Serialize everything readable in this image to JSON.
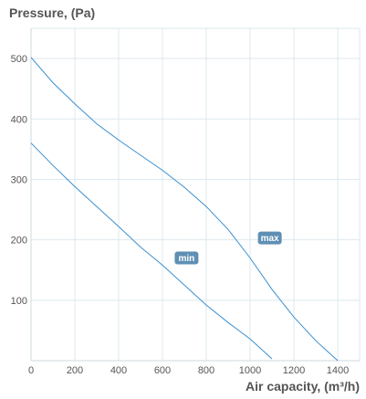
{
  "chart_data": {
    "type": "line",
    "ylabel": "Pressure, (Pa)",
    "xlabel": "Air capacity, (m³/h)",
    "xlim": [
      0,
      1500
    ],
    "ylim": [
      0,
      550
    ],
    "x_ticks": [
      0,
      200,
      400,
      600,
      800,
      1000,
      1200,
      1400
    ],
    "y_ticks": [
      100,
      200,
      300,
      400,
      500
    ],
    "grid": true,
    "series": [
      {
        "name": "max",
        "label_at": [
          1090,
          203
        ],
        "color": "#3a8fd0",
        "points": [
          [
            0,
            502
          ],
          [
            100,
            460
          ],
          [
            200,
            425
          ],
          [
            300,
            392
          ],
          [
            400,
            365
          ],
          [
            500,
            340
          ],
          [
            600,
            315
          ],
          [
            700,
            287
          ],
          [
            800,
            255
          ],
          [
            900,
            217
          ],
          [
            1000,
            170
          ],
          [
            1100,
            118
          ],
          [
            1200,
            72
          ],
          [
            1300,
            33
          ],
          [
            1400,
            0
          ]
        ]
      },
      {
        "name": "min",
        "label_at": [
          710,
          170
        ],
        "color": "#3a8fd0",
        "points": [
          [
            0,
            360
          ],
          [
            100,
            323
          ],
          [
            200,
            288
          ],
          [
            300,
            255
          ],
          [
            400,
            222
          ],
          [
            500,
            188
          ],
          [
            600,
            158
          ],
          [
            700,
            125
          ],
          [
            800,
            92
          ],
          [
            900,
            63
          ],
          [
            1000,
            36
          ],
          [
            1100,
            3
          ]
        ]
      }
    ],
    "badge_color": "#5f8fb4"
  }
}
